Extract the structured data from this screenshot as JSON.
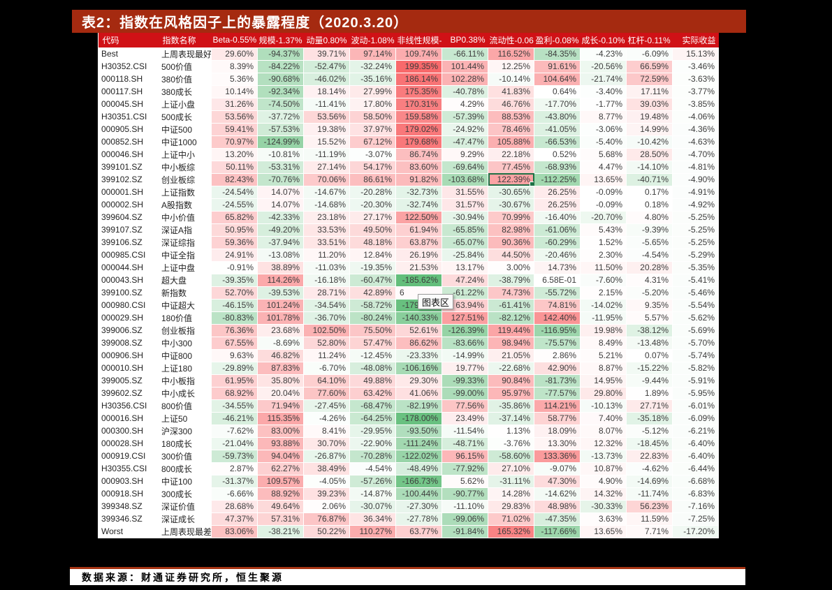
{
  "title": "表2：指数在风格因子上的暴露程度（2020.3.20）",
  "tooltip_label": "图表区",
  "source_text": "数据来源：财通证券研究所，恒生聚源",
  "colors": {
    "title_bar_bg": "#A52A10",
    "title_text": "#FFFFFF",
    "header_bg": "#D01116",
    "header_text": "#FFFFFF",
    "divider": "#A63413",
    "selection_border": "#1E7145"
  },
  "heatmap": {
    "max": 199.35,
    "min": -185.62,
    "pos_color": "#F8696B",
    "neg_color": "#63BE7B",
    "mid_color": "#FFFFFF"
  },
  "selection": {
    "row": 10,
    "col": 6
  },
  "obscured_cell": {
    "row": 19,
    "col": 4
  },
  "table": {
    "headers": [
      "代码",
      "指数名称",
      "Beta-0.55%",
      "规模-1.37%",
      "动量0.80%",
      "波动-1.08%",
      "非线性规模-",
      "BP0.38%",
      "流动性-0.06",
      "盈利-0.08%",
      "成长-0.10%",
      "杠杆-0.11%",
      "实际收益"
    ],
    "rows": [
      {
        "code": "Best",
        "name": "上周表现最好1",
        "values": [
          "29.60%",
          "-94.37%",
          "39.71%",
          "97.14%",
          "109.74%",
          "-66.11%",
          "116.52%",
          "-84.35%",
          "-4.23%",
          "-6.09%",
          "15.13%"
        ]
      },
      {
        "code": "H30352.CSI",
        "name": "500价值",
        "values": [
          "8.39%",
          "-84.22%",
          "-52.47%",
          "-32.24%",
          "199.35%",
          "101.44%",
          "12.25%",
          "91.61%",
          "-20.56%",
          "66.59%",
          "-3.46%"
        ]
      },
      {
        "code": "000118.SH",
        "name": "380价值",
        "values": [
          "5.36%",
          "-90.68%",
          "-46.02%",
          "-35.16%",
          "186.14%",
          "102.28%",
          "-10.14%",
          "104.64%",
          "-21.74%",
          "72.59%",
          "-3.63%"
        ]
      },
      {
        "code": "000117.SH",
        "name": "380成长",
        "values": [
          "10.14%",
          "-92.34%",
          "18.14%",
          "27.99%",
          "175.35%",
          "-40.78%",
          "41.83%",
          "0.64%",
          "-3.40%",
          "17.11%",
          "-3.77%"
        ]
      },
      {
        "code": "000045.SH",
        "name": "上证小盘",
        "values": [
          "31.26%",
          "-74.50%",
          "-11.41%",
          "17.80%",
          "170.31%",
          "4.29%",
          "46.76%",
          "-17.70%",
          "-1.77%",
          "39.03%",
          "-3.85%"
        ]
      },
      {
        "code": "H30351.CSI",
        "name": "500成长",
        "values": [
          "53.56%",
          "-37.72%",
          "53.56%",
          "58.50%",
          "159.58%",
          "-57.39%",
          "88.53%",
          "-43.80%",
          "8.77%",
          "19.48%",
          "-4.06%"
        ]
      },
      {
        "code": "000905.SH",
        "name": "中证500",
        "values": [
          "59.41%",
          "-57.53%",
          "19.38%",
          "37.97%",
          "179.02%",
          "-24.92%",
          "78.46%",
          "-41.05%",
          "-3.06%",
          "14.99%",
          "-4.36%"
        ]
      },
      {
        "code": "000852.SH",
        "name": "中证1000",
        "values": [
          "70.97%",
          "-124.99%",
          "15.52%",
          "67.12%",
          "179.68%",
          "-47.47%",
          "105.88%",
          "-66.53%",
          "-5.40%",
          "-10.42%",
          "-4.63%"
        ]
      },
      {
        "code": "000046.SH",
        "name": "上证中小",
        "values": [
          "13.20%",
          "-10.81%",
          "-11.19%",
          "-3.07%",
          "86.74%",
          "9.29%",
          "22.18%",
          "0.52%",
          "5.68%",
          "28.50%",
          "-4.70%"
        ]
      },
      {
        "code": "399101.SZ",
        "name": "中小板综",
        "values": [
          "50.11%",
          "-53.31%",
          "27.14%",
          "54.17%",
          "83.60%",
          "-69.64%",
          "77.45%",
          "-68.93%",
          "4.47%",
          "-14.10%",
          "-4.81%"
        ]
      },
      {
        "code": "399102.SZ",
        "name": "创业板综",
        "values": [
          "82.43%",
          "-70.76%",
          "70.06%",
          "86.61%",
          "91.82%",
          "-103.68%",
          "122.39%",
          "-112.25%",
          "13.65%",
          "-40.71%",
          "-4.90%"
        ]
      },
      {
        "code": "000001.SH",
        "name": "上证指数",
        "values": [
          "-24.54%",
          "14.07%",
          "-14.67%",
          "-20.28%",
          "-32.73%",
          "31.55%",
          "-30.65%",
          "26.25%",
          "-0.09%",
          "0.17%",
          "-4.91%"
        ]
      },
      {
        "code": "000002.SH",
        "name": "A股指数",
        "values": [
          "-24.55%",
          "14.07%",
          "-14.68%",
          "-20.30%",
          "-32.74%",
          "31.57%",
          "-30.67%",
          "26.25%",
          "-0.09%",
          "0.18%",
          "-4.92%"
        ]
      },
      {
        "code": "399604.SZ",
        "name": "中小价值",
        "values": [
          "65.82%",
          "-42.33%",
          "23.18%",
          "27.17%",
          "122.50%",
          "-30.94%",
          "70.99%",
          "-16.40%",
          "-20.70%",
          "4.80%",
          "-5.25%"
        ]
      },
      {
        "code": "399107.SZ",
        "name": "深证A指",
        "values": [
          "50.95%",
          "-49.20%",
          "33.53%",
          "49.50%",
          "61.94%",
          "-65.85%",
          "82.98%",
          "-61.06%",
          "5.43%",
          "-9.39%",
          "-5.25%"
        ]
      },
      {
        "code": "399106.SZ",
        "name": "深证综指",
        "values": [
          "59.36%",
          "-37.94%",
          "33.51%",
          "48.18%",
          "63.87%",
          "-65.07%",
          "90.36%",
          "-60.29%",
          "1.52%",
          "-5.65%",
          "-5.25%"
        ]
      },
      {
        "code": "000985.CSI",
        "name": "中证全指",
        "values": [
          "24.91%",
          "-13.08%",
          "11.20%",
          "12.84%",
          "26.19%",
          "-25.84%",
          "44.50%",
          "-20.46%",
          "2.30%",
          "-4.54%",
          "-5.29%"
        ]
      },
      {
        "code": "000044.SH",
        "name": "上证中盘",
        "values": [
          "-0.91%",
          "38.89%",
          "-11.03%",
          "-19.35%",
          "21.53%",
          "13.17%",
          "3.00%",
          "14.73%",
          "11.50%",
          "20.28%",
          "-5.35%"
        ]
      },
      {
        "code": "000043.SH",
        "name": "超大盘",
        "values": [
          "-39.35%",
          "114.26%",
          "-16.18%",
          "-60.47%",
          "-185.62%",
          "47.24%",
          "-38.79%",
          "6.58E-01",
          "-7.60%",
          "4.31%",
          "-5.41%"
        ]
      },
      {
        "code": "399100.SZ",
        "name": "新指数",
        "values": [
          "52.70%",
          "-39.53%",
          "28.71%",
          "42.89%",
          "6",
          "-61.22%",
          "74.73%",
          "-55.72%",
          "2.15%",
          "-5.20%",
          "-5.46%"
        ]
      },
      {
        "code": "000980.CSI",
        "name": "中证超大",
        "values": [
          "-46.15%",
          "101.24%",
          "-34.54%",
          "-58.72%",
          "-179.59%",
          "63.94%",
          "-61.41%",
          "74.81%",
          "-14.02%",
          "9.35%",
          "-5.54%"
        ]
      },
      {
        "code": "000029.SH",
        "name": "180价值",
        "values": [
          "-80.83%",
          "101.78%",
          "-36.70%",
          "-80.24%",
          "-140.33%",
          "127.51%",
          "-82.12%",
          "142.40%",
          "-11.95%",
          "5.57%",
          "-5.62%"
        ]
      },
      {
        "code": "399006.SZ",
        "name": "创业板指",
        "values": [
          "76.36%",
          "23.68%",
          "102.50%",
          "75.50%",
          "52.61%",
          "-126.39%",
          "119.44%",
          "-116.95%",
          "19.98%",
          "-38.12%",
          "-5.69%"
        ]
      },
      {
        "code": "399008.SZ",
        "name": "中小300",
        "values": [
          "67.55%",
          "-8.69%",
          "52.80%",
          "57.47%",
          "86.62%",
          "-83.66%",
          "98.94%",
          "-75.57%",
          "8.49%",
          "-13.48%",
          "-5.70%"
        ]
      },
      {
        "code": "000906.SH",
        "name": "中证800",
        "values": [
          "9.63%",
          "46.82%",
          "11.24%",
          "-12.45%",
          "-23.33%",
          "-14.99%",
          "21.05%",
          "2.86%",
          "5.21%",
          "0.07%",
          "-5.74%"
        ]
      },
      {
        "code": "000010.SH",
        "name": "上证180",
        "values": [
          "-29.89%",
          "87.83%",
          "-6.70%",
          "-48.08%",
          "-106.16%",
          "19.77%",
          "-22.68%",
          "42.90%",
          "8.87%",
          "-15.22%",
          "-5.82%"
        ]
      },
      {
        "code": "399005.SZ",
        "name": "中小板指",
        "values": [
          "61.95%",
          "35.80%",
          "64.10%",
          "49.88%",
          "29.30%",
          "-99.33%",
          "90.84%",
          "-81.73%",
          "14.95%",
          "-9.44%",
          "-5.91%"
        ]
      },
      {
        "code": "399602.SZ",
        "name": "中小成长",
        "values": [
          "68.92%",
          "20.04%",
          "77.60%",
          "63.42%",
          "41.06%",
          "-99.00%",
          "95.97%",
          "-77.57%",
          "29.80%",
          "1.89%",
          "-5.95%"
        ]
      },
      {
        "code": "H30356.CSI",
        "name": "800价值",
        "values": [
          "-34.55%",
          "71.94%",
          "-27.45%",
          "-68.47%",
          "-82.19%",
          "77.56%",
          "-35.86%",
          "114.21%",
          "-10.13%",
          "27.71%",
          "-6.01%"
        ]
      },
      {
        "code": "000016.SH",
        "name": "上证50",
        "values": [
          "-46.21%",
          "115.35%",
          "-4.26%",
          "-64.25%",
          "-178.00%",
          "23.49%",
          "-37.14%",
          "58.77%",
          "7.40%",
          "-35.18%",
          "-6.09%"
        ]
      },
      {
        "code": "000300.SH",
        "name": "沪深300",
        "values": [
          "-7.62%",
          "83.00%",
          "8.41%",
          "-29.95%",
          "-93.50%",
          "-11.54%",
          "1.13%",
          "18.09%",
          "8.07%",
          "-5.12%",
          "-6.21%"
        ]
      },
      {
        "code": "000028.SH",
        "name": "180成长",
        "values": [
          "-21.04%",
          "93.88%",
          "30.70%",
          "-22.90%",
          "-111.24%",
          "-48.71%",
          "-3.76%",
          "13.30%",
          "12.32%",
          "-18.45%",
          "-6.40%"
        ]
      },
      {
        "code": "000919.CSI",
        "name": "300价值",
        "values": [
          "-59.73%",
          "94.04%",
          "-26.87%",
          "-70.28%",
          "-122.02%",
          "96.15%",
          "-58.60%",
          "133.36%",
          "-13.73%",
          "22.83%",
          "-6.40%"
        ]
      },
      {
        "code": "H30355.CSI",
        "name": "800成长",
        "values": [
          "2.87%",
          "62.27%",
          "38.49%",
          "-4.54%",
          "-48.49%",
          "-77.92%",
          "27.10%",
          "-9.07%",
          "10.87%",
          "-4.62%",
          "-6.44%"
        ]
      },
      {
        "code": "000903.SH",
        "name": "中证100",
        "values": [
          "-31.37%",
          "109.57%",
          "-4.05%",
          "-57.26%",
          "-166.73%",
          "5.62%",
          "-31.11%",
          "47.30%",
          "4.90%",
          "-14.69%",
          "-6.68%"
        ]
      },
      {
        "code": "000918.SH",
        "name": "300成长",
        "values": [
          "-6.66%",
          "88.92%",
          "39.23%",
          "-14.87%",
          "-100.44%",
          "-90.77%",
          "14.28%",
          "-14.62%",
          "14.32%",
          "-11.74%",
          "-6.83%"
        ]
      },
      {
        "code": "399348.SZ",
        "name": "深证价值",
        "values": [
          "28.68%",
          "49.64%",
          "2.06%",
          "-30.07%",
          "-27.30%",
          "-11.10%",
          "29.83%",
          "48.98%",
          "-30.33%",
          "56.23%",
          "-7.16%"
        ]
      },
      {
        "code": "399346.SZ",
        "name": "深证成长",
        "values": [
          "47.37%",
          "57.31%",
          "76.87%",
          "36.34%",
          "-27.78%",
          "-99.06%",
          "71.02%",
          "-47.35%",
          "3.63%",
          "11.59%",
          "-7.25%"
        ]
      },
      {
        "code": "Worst",
        "name": "上周表现最差1",
        "values": [
          "83.06%",
          "-38.21%",
          "50.22%",
          "110.27%",
          "63.77%",
          "-91.84%",
          "165.32%",
          "-117.66%",
          "13.65%",
          "7.71%",
          "-17.20%"
        ]
      }
    ]
  }
}
